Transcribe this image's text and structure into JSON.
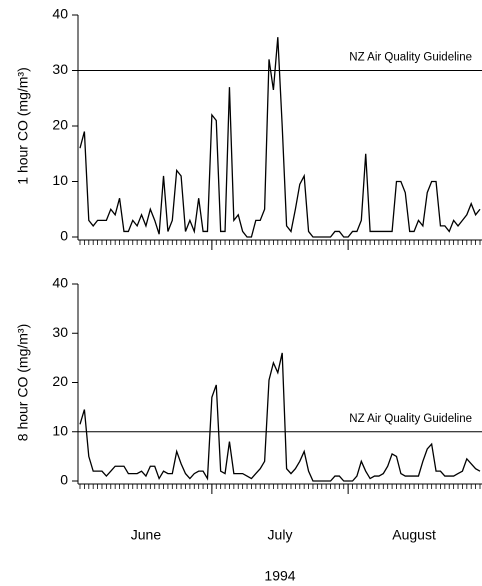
{
  "chart_data": [
    {
      "type": "line",
      "ylabel": "1 hour CO (mg/m³)",
      "x": [
        0,
        1,
        2,
        3,
        4,
        5,
        6,
        7,
        8,
        9,
        10,
        11,
        12,
        13,
        14,
        15,
        16,
        17,
        18,
        19,
        20,
        21,
        22,
        23,
        24,
        25,
        26,
        27,
        28,
        29,
        30,
        31,
        32,
        33,
        34,
        35,
        36,
        37,
        38,
        39,
        40,
        41,
        42,
        43,
        44,
        45,
        46,
        47,
        48,
        49,
        50,
        51,
        52,
        53,
        54,
        55,
        56,
        57,
        58,
        59,
        60,
        61,
        62,
        63,
        64,
        65,
        66,
        67,
        68,
        69,
        70,
        71,
        72,
        73,
        74,
        75,
        76,
        77,
        78,
        79,
        80,
        81,
        82,
        83,
        84,
        85,
        86,
        87,
        88,
        89,
        90,
        91
      ],
      "values": [
        16,
        19,
        3,
        2,
        3,
        3,
        3,
        5,
        4,
        7,
        1,
        1,
        3,
        2,
        4,
        2,
        5,
        3,
        0.5,
        11,
        1,
        3,
        12,
        11,
        1,
        3,
        1,
        7,
        1,
        1,
        22,
        21,
        1,
        1,
        27,
        3,
        4,
        1,
        0,
        0,
        3,
        3,
        5,
        32,
        26.5,
        36,
        20,
        2,
        1,
        5,
        9.5,
        11,
        1,
        0,
        0,
        0,
        0,
        0,
        1,
        1,
        0,
        0,
        1,
        1,
        3,
        15,
        1,
        1,
        1,
        1,
        1,
        1,
        10,
        10,
        8,
        1,
        1,
        3,
        2,
        8,
        10,
        10,
        2,
        2,
        1,
        3,
        2,
        3,
        4,
        6,
        4,
        5
      ],
      "color": "#000000",
      "xlim": [
        0,
        91
      ],
      "xmajorticks": [
        30,
        61
      ],
      "ylim": [
        0,
        40
      ],
      "yticks": [
        0,
        10,
        20,
        30,
        40
      ],
      "reference_lines": [
        {
          "value": 30,
          "label": "NZ Air Quality Guideline"
        }
      ]
    },
    {
      "type": "line",
      "ylabel": "8 hour CO (mg/m³)",
      "xlabel": "1994",
      "x": [
        0,
        1,
        2,
        3,
        4,
        5,
        6,
        7,
        8,
        9,
        10,
        11,
        12,
        13,
        14,
        15,
        16,
        17,
        18,
        19,
        20,
        21,
        22,
        23,
        24,
        25,
        26,
        27,
        28,
        29,
        30,
        31,
        32,
        33,
        34,
        35,
        36,
        37,
        38,
        39,
        40,
        41,
        42,
        43,
        44,
        45,
        46,
        47,
        48,
        49,
        50,
        51,
        52,
        53,
        54,
        55,
        56,
        57,
        58,
        59,
        60,
        61,
        62,
        63,
        64,
        65,
        66,
        67,
        68,
        69,
        70,
        71,
        72,
        73,
        74,
        75,
        76,
        77,
        78,
        79,
        80,
        81,
        82,
        83,
        84,
        85,
        86,
        87,
        88,
        89,
        90,
        91
      ],
      "values": [
        11.5,
        14.5,
        5,
        2,
        2,
        2,
        1,
        2,
        3,
        3,
        3,
        1.5,
        1.5,
        1.5,
        2,
        1,
        3,
        3,
        0.5,
        2,
        1.5,
        1.5,
        6,
        3.5,
        1.5,
        0.5,
        1.5,
        2,
        2,
        0.5,
        17,
        19.5,
        2,
        1.5,
        8,
        1.5,
        1.5,
        1.5,
        1,
        0.5,
        1.5,
        2.5,
        4,
        20.5,
        24,
        22,
        26,
        2.5,
        1.5,
        2.5,
        4,
        6,
        2,
        0,
        0,
        0,
        0,
        0,
        1,
        1,
        0,
        0,
        0,
        1,
        4,
        2,
        0.5,
        1,
        1,
        1.5,
        3,
        5.5,
        5,
        1.5,
        1,
        1,
        1,
        1,
        4,
        6.5,
        7.5,
        2,
        2,
        1,
        1,
        1,
        1.5,
        2,
        4.5,
        3.5,
        2.5,
        2
      ],
      "color": "#000000",
      "xlim": [
        0,
        91
      ],
      "xmajorticks": [
        30,
        61
      ],
      "xticks": [
        {
          "value": 15,
          "label": "June"
        },
        {
          "value": 45.5,
          "label": "July"
        },
        {
          "value": 76,
          "label": "August"
        }
      ],
      "ylim": [
        0,
        40
      ],
      "yticks": [
        0,
        10,
        20,
        30,
        40
      ],
      "reference_lines": [
        {
          "value": 10,
          "label": "NZ Air Quality Guideline"
        }
      ]
    }
  ]
}
